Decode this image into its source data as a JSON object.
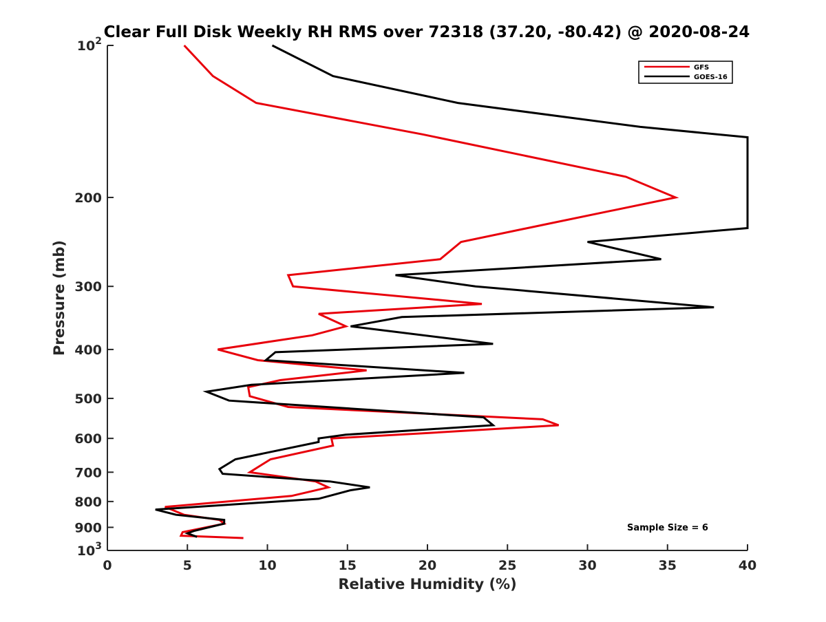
{
  "chart_data": {
    "type": "line",
    "title": "Clear Full Disk Weekly RH RMS over 72318 (37.20, -80.42) @ 2020-08-24",
    "xlabel": "Relative Humidity (%)",
    "ylabel": "Pressure (mb)",
    "xlim": [
      0,
      40
    ],
    "ylim": [
      100,
      1000
    ],
    "y_scale": "log",
    "y_reversed": true,
    "x_ticks": [
      "0",
      "5",
      "10",
      "15",
      "20",
      "25",
      "30",
      "35",
      "40"
    ],
    "y_ticks": [
      {
        "value": 100,
        "base": "10",
        "exp": "2"
      },
      {
        "value": 200,
        "label": "200"
      },
      {
        "value": 300,
        "label": "300"
      },
      {
        "value": 400,
        "label": "400"
      },
      {
        "value": 500,
        "label": "500"
      },
      {
        "value": 600,
        "label": "600"
      },
      {
        "value": 700,
        "label": "700"
      },
      {
        "value": 800,
        "label": "800"
      },
      {
        "value": 900,
        "label": "900"
      },
      {
        "value": 1000,
        "base": "10",
        "exp": "3"
      }
    ],
    "grid": false,
    "legend_position": "top-right",
    "annotation": "Sample Size = 6",
    "series": [
      {
        "name": "GFS",
        "color": "#e8000b",
        "points": [
          [
            4.8,
            100
          ],
          [
            6.6,
            115
          ],
          [
            9.3,
            130
          ],
          [
            19.7,
            150
          ],
          [
            32.4,
            182
          ],
          [
            35.5,
            200
          ],
          [
            27.7,
            225
          ],
          [
            22.1,
            245
          ],
          [
            20.8,
            265
          ],
          [
            11.3,
            285
          ],
          [
            11.6,
            300
          ],
          [
            23.4,
            325
          ],
          [
            13.2,
            340
          ],
          [
            14.9,
            360
          ],
          [
            12.8,
            375
          ],
          [
            6.9,
            400
          ],
          [
            9.4,
            420
          ],
          [
            16.2,
            440
          ],
          [
            10.8,
            460
          ],
          [
            8.8,
            475
          ],
          [
            8.9,
            495
          ],
          [
            11.3,
            520
          ],
          [
            27.2,
            550
          ],
          [
            28.2,
            565
          ],
          [
            20.2,
            585
          ],
          [
            14.0,
            600
          ],
          [
            14.1,
            620
          ],
          [
            10.2,
            660
          ],
          [
            8.9,
            700
          ],
          [
            13.0,
            730
          ],
          [
            13.8,
            750
          ],
          [
            11.5,
            780
          ],
          [
            3.6,
            820
          ],
          [
            4.8,
            850
          ],
          [
            7.0,
            870
          ],
          [
            7.3,
            885
          ],
          [
            4.7,
            920
          ],
          [
            4.6,
            935
          ],
          [
            8.5,
            945
          ]
        ]
      },
      {
        "name": "GOES-16",
        "color": "#000000",
        "points": [
          [
            10.3,
            100
          ],
          [
            14.1,
            115
          ],
          [
            21.9,
            130
          ],
          [
            33.3,
            145
          ],
          [
            40.0,
            152
          ],
          [
            40.0,
            230
          ],
          [
            30.0,
            245
          ],
          [
            34.6,
            265
          ],
          [
            18.0,
            285
          ],
          [
            23.0,
            300
          ],
          [
            37.9,
            330
          ],
          [
            18.4,
            345
          ],
          [
            15.2,
            360
          ],
          [
            24.1,
            390
          ],
          [
            10.5,
            405
          ],
          [
            9.9,
            420
          ],
          [
            22.3,
            445
          ],
          [
            9.0,
            470
          ],
          [
            6.2,
            485
          ],
          [
            7.6,
            505
          ],
          [
            23.5,
            545
          ],
          [
            24.1,
            565
          ],
          [
            14.9,
            590
          ],
          [
            13.2,
            600
          ],
          [
            13.2,
            610
          ],
          [
            8.0,
            660
          ],
          [
            7.0,
            690
          ],
          [
            7.2,
            705
          ],
          [
            13.9,
            730
          ],
          [
            16.4,
            750
          ],
          [
            15.2,
            760
          ],
          [
            13.2,
            790
          ],
          [
            3.0,
            830
          ],
          [
            4.3,
            850
          ],
          [
            7.3,
            870
          ],
          [
            7.3,
            885
          ],
          [
            5.4,
            915
          ],
          [
            5.0,
            925
          ],
          [
            5.6,
            940
          ]
        ]
      }
    ]
  }
}
